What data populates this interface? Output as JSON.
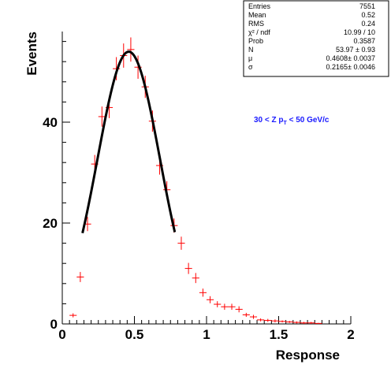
{
  "chart_data": {
    "type": "scatter",
    "title": "",
    "xlabel": "Response",
    "ylabel": "Events",
    "xlim": [
      0,
      2
    ],
    "ylim": [
      0,
      58
    ],
    "x_ticks": [
      "0",
      "0.5",
      "1",
      "1.5",
      "2"
    ],
    "y_ticks": [
      "0",
      "20",
      "40"
    ],
    "annotation": {
      "prefix": "30 < Z p",
      "subscript": "T",
      "suffix": " < 50 GeV/c"
    },
    "stats_box": {
      "rows": [
        {
          "label": "Entries",
          "value": "7551"
        },
        {
          "label": "Mean",
          "value": "0.52"
        },
        {
          "label": "RMS",
          "value": "0.24"
        },
        {
          "label": "χ² / ndf",
          "value": "10.99 / 10"
        },
        {
          "label": "Prob",
          "value": "0.3587"
        },
        {
          "label": "N",
          "value": "53.97 ± 0.93"
        },
        {
          "label": "μ",
          "value": "0.4608± 0.0037"
        },
        {
          "label": "σ",
          "value": "0.2165± 0.0046"
        }
      ]
    },
    "series": [
      {
        "style": "points-with-errors",
        "color": "#ff0000",
        "bin_half_width": 0.025,
        "points": [
          {
            "x": 0.075,
            "y": 1.7,
            "err": 0.4
          },
          {
            "x": 0.125,
            "y": 9.3,
            "err": 1.0
          },
          {
            "x": 0.175,
            "y": 19.8,
            "err": 1.4
          },
          {
            "x": 0.225,
            "y": 31.7,
            "err": 1.8
          },
          {
            "x": 0.275,
            "y": 41.1,
            "err": 2.0
          },
          {
            "x": 0.325,
            "y": 42.9,
            "err": 2.1
          },
          {
            "x": 0.375,
            "y": 50.6,
            "err": 2.3
          },
          {
            "x": 0.425,
            "y": 53.2,
            "err": 2.4
          },
          {
            "x": 0.475,
            "y": 54.4,
            "err": 2.4
          },
          {
            "x": 0.525,
            "y": 50.9,
            "err": 2.3
          },
          {
            "x": 0.575,
            "y": 47.0,
            "err": 2.2
          },
          {
            "x": 0.625,
            "y": 40.2,
            "err": 2.1
          },
          {
            "x": 0.675,
            "y": 31.4,
            "err": 1.8
          },
          {
            "x": 0.725,
            "y": 26.6,
            "err": 1.7
          },
          {
            "x": 0.775,
            "y": 19.5,
            "err": 1.4
          },
          {
            "x": 0.825,
            "y": 16.0,
            "err": 1.3
          },
          {
            "x": 0.875,
            "y": 11.0,
            "err": 1.1
          },
          {
            "x": 0.925,
            "y": 9.1,
            "err": 1.0
          },
          {
            "x": 0.975,
            "y": 6.2,
            "err": 0.8
          },
          {
            "x": 1.025,
            "y": 4.8,
            "err": 0.7
          },
          {
            "x": 1.075,
            "y": 3.9,
            "err": 0.6
          },
          {
            "x": 1.125,
            "y": 3.4,
            "err": 0.6
          },
          {
            "x": 1.175,
            "y": 3.4,
            "err": 0.6
          },
          {
            "x": 1.225,
            "y": 2.9,
            "err": 0.6
          },
          {
            "x": 1.275,
            "y": 1.8,
            "err": 0.4
          },
          {
            "x": 1.325,
            "y": 1.4,
            "err": 0.4
          },
          {
            "x": 1.375,
            "y": 0.8,
            "err": 0.3
          },
          {
            "x": 1.425,
            "y": 0.7,
            "err": 0.3
          },
          {
            "x": 1.475,
            "y": 0.6,
            "err": 0.3
          },
          {
            "x": 1.525,
            "y": 0.5,
            "err": 0.2
          },
          {
            "x": 1.575,
            "y": 0.4,
            "err": 0.2
          },
          {
            "x": 1.625,
            "y": 0.3,
            "err": 0.2
          },
          {
            "x": 1.675,
            "y": 0.2,
            "err": 0.2
          },
          {
            "x": 1.725,
            "y": 0.2,
            "err": 0.2
          },
          {
            "x": 1.775,
            "y": 0.1,
            "err": 0.1
          }
        ]
      },
      {
        "style": "fit-curve",
        "function": "gaussian",
        "color": "#000000",
        "N": 53.97,
        "mu": 0.4608,
        "sigma": 0.2165,
        "x_range": [
          0.14,
          0.78
        ]
      }
    ]
  }
}
